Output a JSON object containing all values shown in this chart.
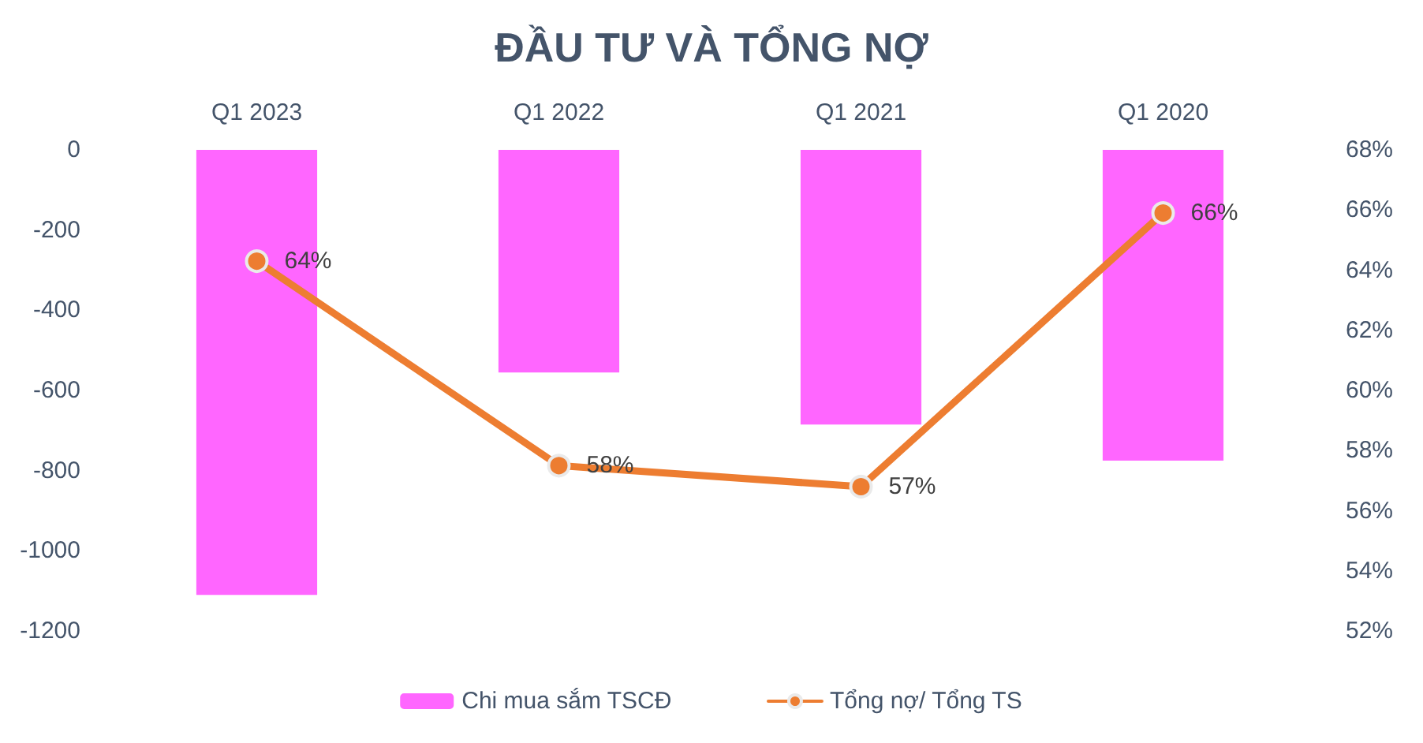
{
  "chart_data": {
    "type": "bar",
    "title": "ĐẦU TƯ VÀ TỔNG NỢ",
    "categories": [
      "Q1 2023",
      "Q1 2022",
      "Q1 2021",
      "Q1 2020"
    ],
    "series": [
      {
        "name": "Chi mua sắm TSCĐ",
        "color": "#ff66ff",
        "values": [
          -1110,
          -555,
          -685,
          -775
        ]
      },
      {
        "name": "Tổng nợ/ Tổng TS",
        "type": "line",
        "axis": "y2",
        "color": "#ed7d31",
        "values": [
          64.3,
          57.5,
          56.8,
          65.9
        ],
        "value_labels": [
          "64%",
          "58%",
          "57%",
          "66%"
        ]
      }
    ],
    "ylim": [
      -1200,
      0
    ],
    "yticks": [
      0,
      -200,
      -400,
      -600,
      -800,
      -1000,
      -1200
    ],
    "y2lim": [
      52,
      68
    ],
    "y2ticks": [
      {
        "value": 52,
        "label": "52%"
      },
      {
        "value": 54,
        "label": "54%"
      },
      {
        "value": 56,
        "label": "56%"
      },
      {
        "value": 58,
        "label": "58%"
      },
      {
        "value": 60,
        "label": "60%"
      },
      {
        "value": 62,
        "label": "62%"
      },
      {
        "value": 64,
        "label": "64%"
      },
      {
        "value": 66,
        "label": "66%"
      },
      {
        "value": 68,
        "label": "68%"
      }
    ],
    "legend": "bottom",
    "marker": "circle",
    "grid": false
  }
}
